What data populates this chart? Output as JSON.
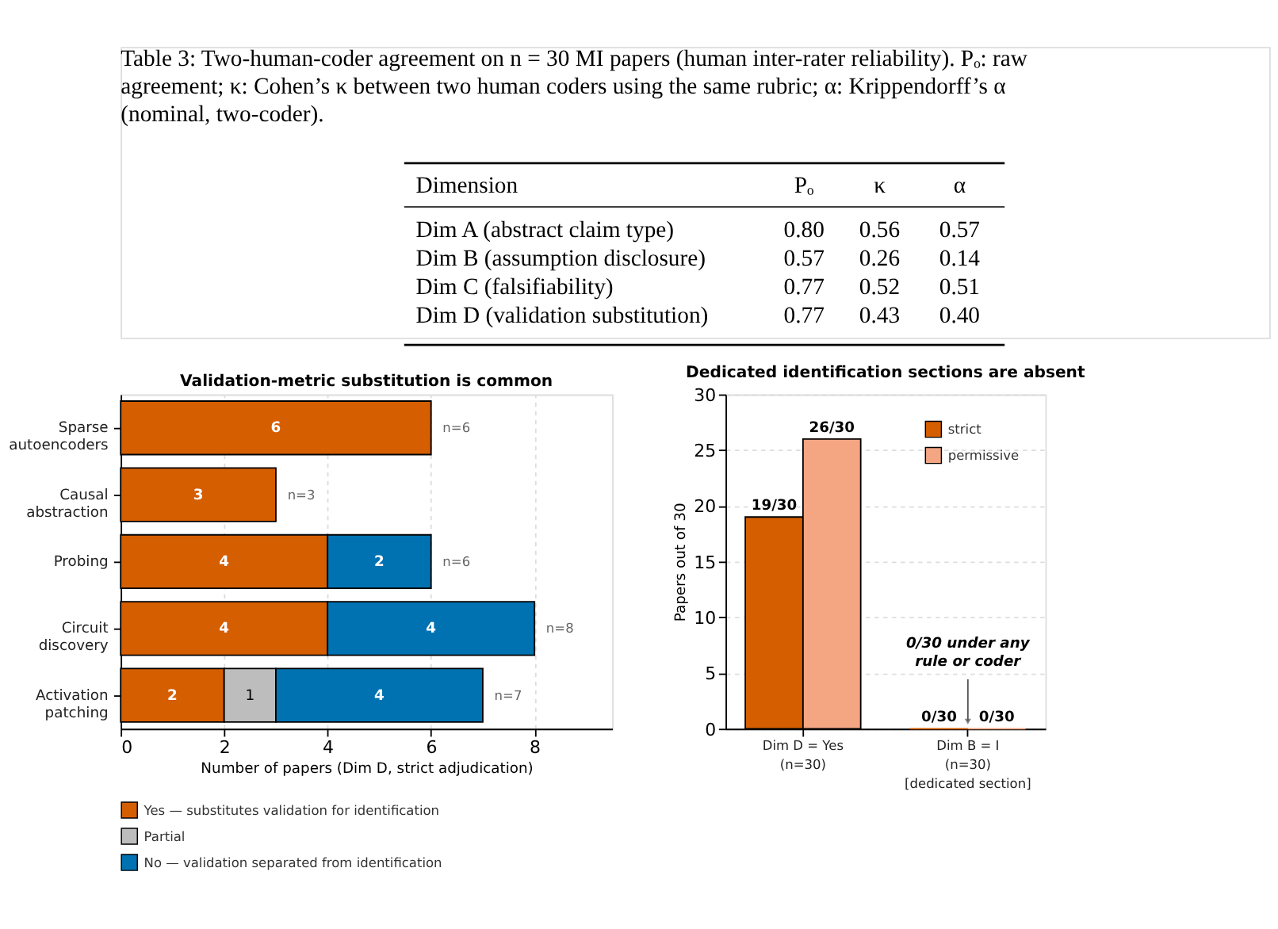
{
  "chart_data": [
    {
      "type": "other",
      "title": "Table 3: Two-human-coder agreement on n = 30 MI papers (human inter-rater reliability). Pₒ: raw agreement; κ: Cohen’s κ between two human coders using the same rubric; α: Krippendorff’s α (nominal, two-coder).",
      "ylabel": "Dimension",
      "categories": [
        "Pₒ",
        "κ",
        "α"
      ],
      "y_categories": [
        "Dim A (abstract claim type)",
        "Dim B (assumption disclosure)",
        "Dim C (falsifiability)",
        "Dim D (validation substitution)"
      ],
      "annotations": [
        "0.80",
        "0.56",
        "0.57",
        "0.57",
        "0.26",
        "0.14",
        "0.77",
        "0.52",
        "0.51",
        "0.77",
        "0.43",
        "0.40"
      ]
    },
    {
      "type": "bar",
      "orientation": "horizontal",
      "stacked": true,
      "title": "Validation-metric substitution is common",
      "xlabel": "Number of papers (Dim D, strict adjudication)",
      "categories": [
        "Sparse autoencoders",
        "Causal abstraction",
        "Probing",
        "Circuit discovery",
        "Activation patching"
      ],
      "series": [
        {
          "name": "Yes — substitutes validation for identification",
          "color": "#d55e00",
          "values": [
            6,
            3,
            4,
            4,
            2
          ]
        },
        {
          "name": "Partial",
          "color": "#bdbdbd",
          "values": [
            null,
            null,
            null,
            null,
            1
          ]
        },
        {
          "name": "No — validation separated from identification",
          "color": "#0072b2",
          "values": [
            null,
            null,
            2,
            4,
            4
          ]
        }
      ],
      "data_labels": true,
      "totals": [
        "n=6",
        "n=3",
        "n=6",
        "n=8",
        "n=7"
      ],
      "xlim": [
        0,
        9.5
      ],
      "xticks": [
        0,
        2,
        4,
        6,
        8
      ],
      "grid": "x",
      "legend": "bottom"
    },
    {
      "type": "bar",
      "title": "Dedicated identification sections are absent",
      "ylabel": "Papers out of 30",
      "categories": [
        "Dim D = Yes\n(n=30)",
        "Dim B = I\n(n=30)\n[dedicated section]"
      ],
      "series": [
        {
          "name": "strict",
          "color": "#d55e00",
          "values": [
            19,
            0
          ],
          "value_labels": [
            "19/30",
            "0/30"
          ]
        },
        {
          "name": "permissive",
          "color": "#f4a582",
          "values": [
            26,
            0
          ],
          "value_labels": [
            "26/30",
            "0/30"
          ]
        }
      ],
      "annotations": [
        {
          "text": "0/30 under any rule or coder",
          "x": "Dim B = I\n(n=30)\n[dedicated section]",
          "y": 0
        }
      ],
      "ylim": [
        0,
        30
      ],
      "yticks": [
        0,
        5,
        10,
        15,
        20,
        25,
        30
      ],
      "grid": "y",
      "legend": "top right"
    }
  ]
}
